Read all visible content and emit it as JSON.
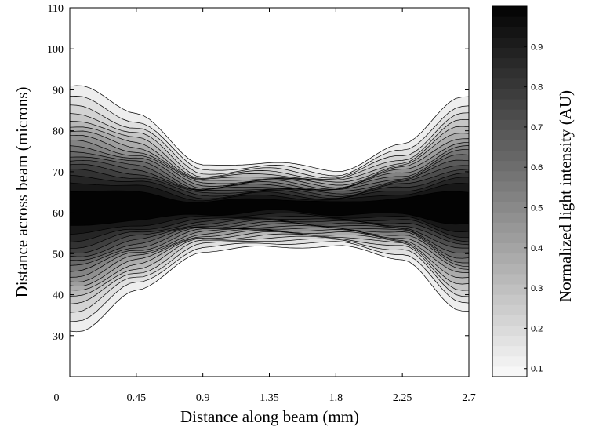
{
  "chart_data": {
    "type": "contour",
    "title": "",
    "xlabel": "Distance along beam (mm)",
    "ylabel": "Distance across beam   (microns)",
    "colorbar_label": "Normalized light intensity   (AU)",
    "xlim": [
      0,
      2.7
    ],
    "ylim": [
      20,
      110
    ],
    "colorbar_range": [
      0.08,
      1.0
    ],
    "x_ticks": [
      0,
      0.45,
      0.9,
      1.35,
      1.8,
      2.25,
      2.7
    ],
    "x_tick_labels": [
      "0",
      "0.45",
      "0.9",
      "1.35",
      "1.8",
      "2.25",
      "2.7"
    ],
    "y_ticks": [
      30,
      40,
      50,
      60,
      70,
      80,
      90,
      100,
      110
    ],
    "y_tick_labels": [
      "30",
      "40",
      "50",
      "60",
      "70",
      "80",
      "90",
      "100",
      "110"
    ],
    "colorbar_ticks": [
      0.1,
      0.2,
      0.3,
      0.4,
      0.5,
      0.6,
      0.7,
      0.8,
      0.9
    ],
    "colorbar_tick_labels": [
      "0.1",
      "0.2",
      "0.3",
      "0.4",
      "0.5",
      "0.6",
      "0.7",
      "0.8",
      "0.9"
    ],
    "colormap": "gray (white = low, black = high)",
    "grid": false,
    "beam_profile": {
      "x": [
        0.05,
        0.45,
        0.9,
        1.35,
        1.8,
        2.25,
        2.65
      ],
      "center": [
        61,
        61.5,
        61,
        62,
        61,
        61.5,
        61
      ],
      "width_upper": [
        13,
        10,
        4.5,
        4.5,
        4,
        6.5,
        12
      ],
      "width_lower": [
        13,
        9,
        4.5,
        4.5,
        4,
        5.5,
        11
      ]
    },
    "contour_levels": [
      0.1,
      0.15,
      0.2,
      0.25,
      0.3,
      0.35,
      0.4,
      0.45,
      0.5,
      0.55,
      0.6,
      0.65,
      0.7,
      0.75,
      0.8,
      0.85,
      0.9,
      0.95
    ]
  }
}
